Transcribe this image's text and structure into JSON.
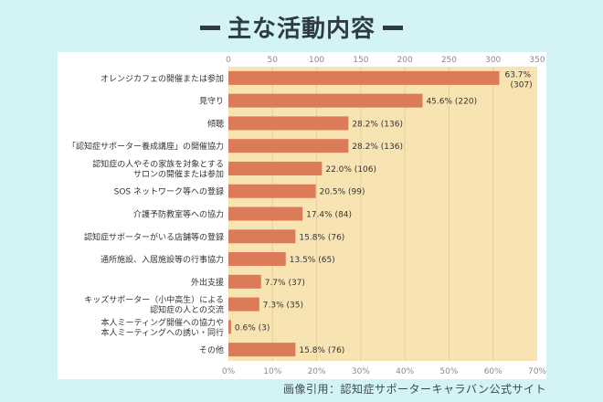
{
  "chart_data": {
    "type": "bar",
    "orientation": "horizontal",
    "title": "主な活動内容",
    "credit": "画像引用：認知症サポーターキャラバン公式サイト",
    "top_axis": {
      "min": 0,
      "max": 350,
      "ticks": [
        "0",
        "50",
        "100",
        "150",
        "200",
        "250",
        "300",
        "350"
      ]
    },
    "bottom_axis": {
      "min": 0,
      "max": 70,
      "ticks": [
        "0%",
        "10%",
        "20%",
        "30%",
        "40%",
        "50%",
        "60%",
        "70%"
      ]
    },
    "categories": [
      [
        "オレンジカフェの開催または参加"
      ],
      [
        "見守り"
      ],
      [
        "傾聴"
      ],
      [
        "「認知症サポーター養成講座」の開催協力"
      ],
      [
        "認知症の人やその家族を対象とする",
        "サロンの開催または参加"
      ],
      [
        "SOS ネットワーク等への登録"
      ],
      [
        "介護予防教室等への協力"
      ],
      [
        "認知症サポーターがいる店舗等の登録"
      ],
      [
        "通所施設、入居施設等の行事協力"
      ],
      [
        "外出支援"
      ],
      [
        "キッズサポーター（小中高生）による",
        "認知症の人との交流"
      ],
      [
        "本人ミーティング開催への協力や",
        "本人ミーティングへの誘い・同行"
      ],
      [
        "その他"
      ]
    ],
    "counts": [
      307,
      220,
      136,
      136,
      106,
      99,
      84,
      76,
      65,
      37,
      35,
      3,
      76
    ],
    "labels": [
      [
        "63.7%",
        "(307)"
      ],
      [
        "45.6% (220)"
      ],
      [
        "28.2% (136)"
      ],
      [
        "28.2% (136)"
      ],
      [
        "22.0% (106)"
      ],
      [
        "20.5% (99)"
      ],
      [
        "17.4% (84)"
      ],
      [
        "15.8% (76)"
      ],
      [
        "13.5% (65)"
      ],
      [
        "7.7% (37)"
      ],
      [
        "7.3% (35)"
      ],
      [
        "0.6% (3)"
      ],
      [
        "15.8% (76)"
      ]
    ],
    "colors": {
      "bar": "#dc7b58",
      "plot_bg": "#f8e3b3",
      "grid": "#e7cf98",
      "axis_text": "#8a8a8a",
      "label_text": "#333333"
    }
  }
}
